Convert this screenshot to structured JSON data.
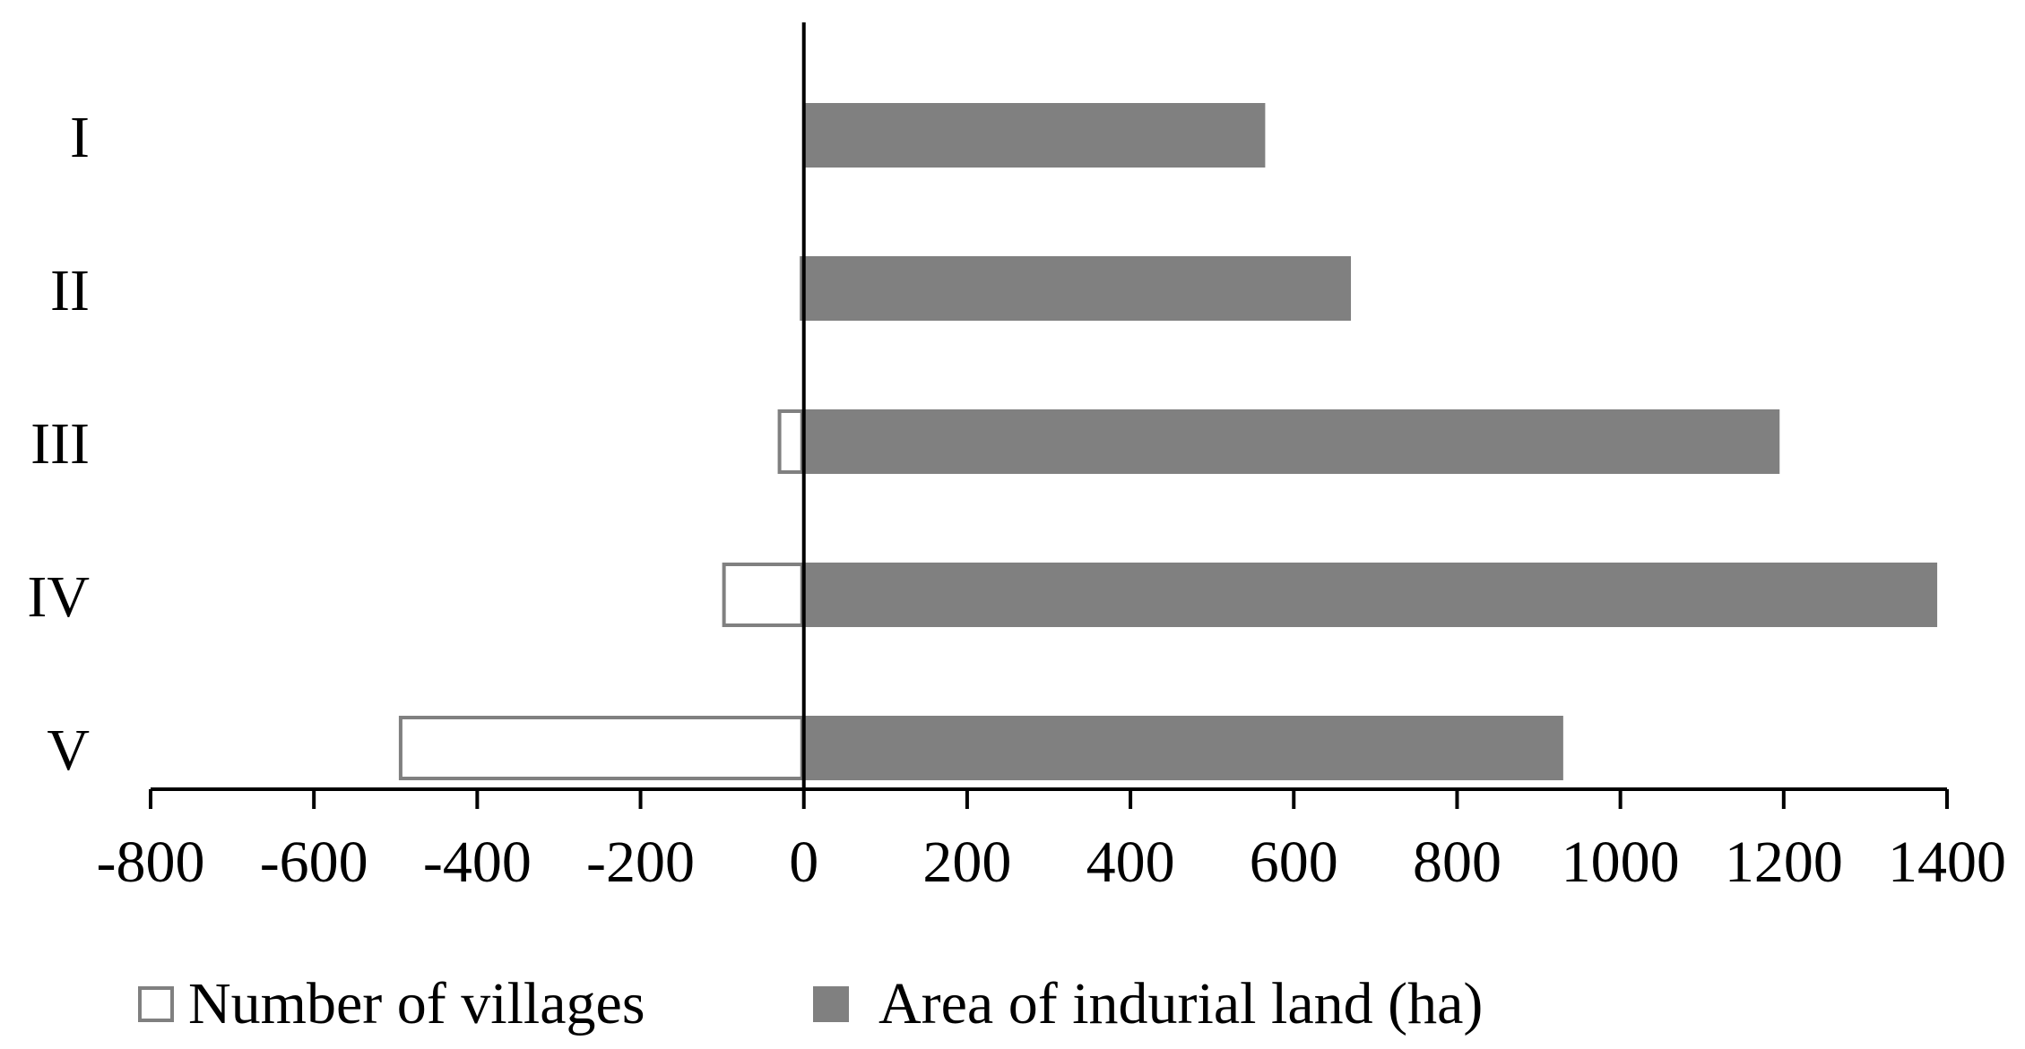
{
  "chart_data": {
    "type": "bar",
    "orientation": "horizontal",
    "title": "",
    "xlabel": "",
    "ylabel": "",
    "categories": [
      "I",
      "II",
      "III",
      "IV",
      "V"
    ],
    "series": [
      {
        "name": "Number of villages",
        "values": [
          0,
          -5,
          -32,
          -100,
          -496
        ],
        "fill": "#ffffff",
        "stroke": "#808080"
      },
      {
        "name": "Area of indurial land (ha)",
        "values": [
          565,
          670,
          1195,
          1388,
          930
        ],
        "fill": "#808080",
        "stroke": "#808080"
      }
    ],
    "xlim": [
      -800,
      1400
    ],
    "xticks": [
      -800,
      -600,
      -400,
      -200,
      0,
      200,
      400,
      600,
      800,
      1000,
      1200,
      1400
    ],
    "grid": false,
    "legend": "bottom"
  }
}
